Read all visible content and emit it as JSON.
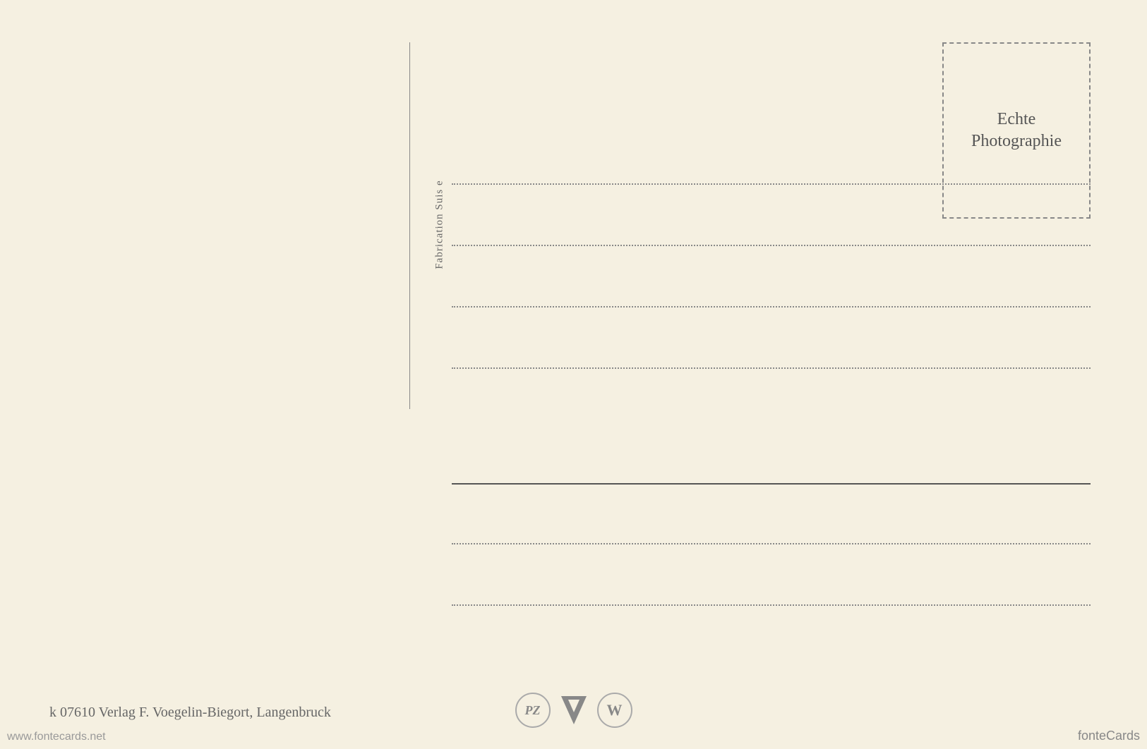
{
  "postcard": {
    "vertical_label": "Fabrication Suis e",
    "stamp_box": {
      "line1": "Echte",
      "line2": "Photographie"
    },
    "publisher": {
      "catalog_number": "k 07610",
      "text": "Verlag F. Voegelin-Biegort, Langenbruck"
    },
    "logos": {
      "pz": "PZ",
      "w": "W"
    },
    "watermarks": {
      "left": "www.fontecards.net",
      "right": "fonteCards"
    },
    "colors": {
      "background": "#f5f0e1",
      "text_dark": "#555",
      "text_medium": "#666",
      "text_light": "#888",
      "line": "#888"
    }
  }
}
